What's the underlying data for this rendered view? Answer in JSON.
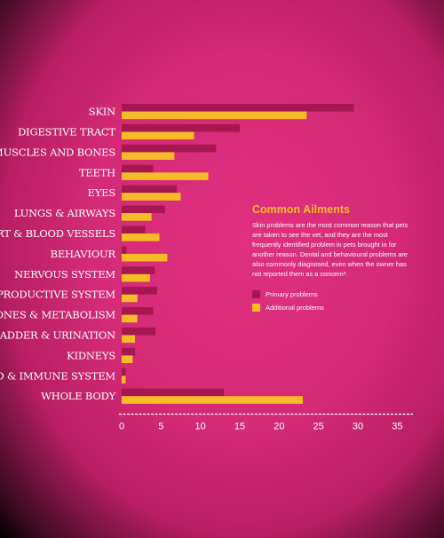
{
  "colors": {
    "primary": "#a5184f",
    "additional": "#f7bb27",
    "axis": "#ffffff",
    "title": "#f7bb27"
  },
  "panel": {
    "title": "Common Ailments",
    "text": "Skin problems are the most common reason that pets are taken to see the vet, and they are the most frequently identified problem in pets brought in for another reason. Dental and behavioural problems are also commonly diagnosed, even when the owner has not reported them as a concern³."
  },
  "chart_data": {
    "type": "bar",
    "orientation": "horizontal",
    "title": "",
    "xlabel": "",
    "ylabel": "",
    "xlim": [
      0,
      35
    ],
    "xticks": [
      0,
      5,
      10,
      15,
      20,
      25,
      30,
      35
    ],
    "legend_position": "right",
    "grid": false,
    "categories": [
      "SKIN",
      "DIGESTIVE TRACT",
      "MUSCLES AND BONES",
      "TEETH",
      "EYES",
      "LUNGS & AIRWAYS",
      "HEART & BLOOD VESSELS",
      "BEHAVIOUR",
      "NERVOUS SYSTEM",
      "REPRODUCTIVE SYSTEM",
      "HORMONES & METABOLISM",
      "BLADDER & URINATION",
      "KIDNEYS",
      "BLOOD & IMMUNE SYSTEM",
      "WHOLE BODY"
    ],
    "series": [
      {
        "name": "Primary problems",
        "values": [
          29.5,
          15,
          12,
          4,
          7,
          5.5,
          3,
          0.6,
          4.2,
          4.5,
          4,
          4.3,
          1.7,
          0.5,
          13
        ]
      },
      {
        "name": "Additional problems",
        "values": [
          23.5,
          9.2,
          6.7,
          11,
          7.5,
          3.8,
          4.8,
          5.8,
          3.6,
          2,
          2,
          1.7,
          1.4,
          0.5,
          23
        ]
      }
    ]
  }
}
